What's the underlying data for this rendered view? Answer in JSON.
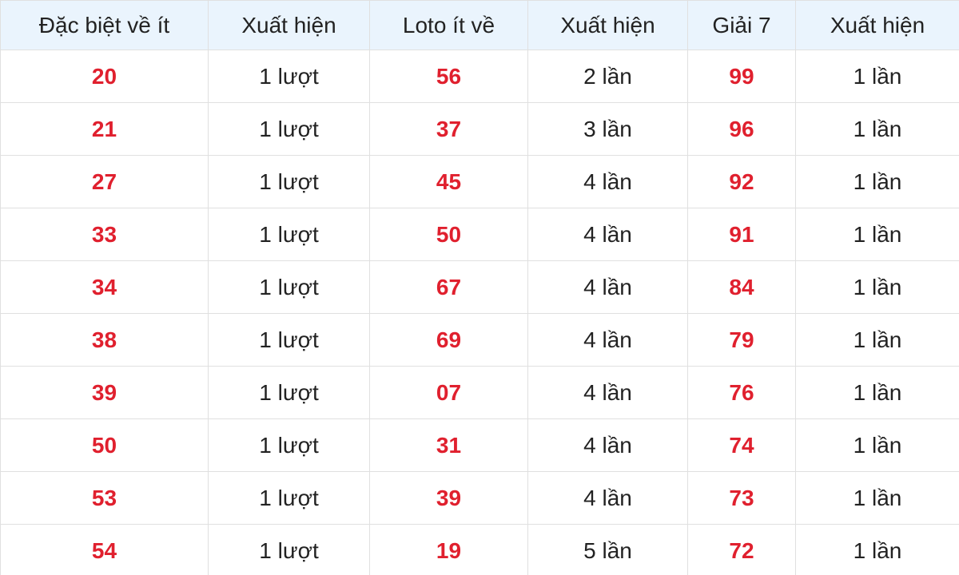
{
  "table": {
    "headers": [
      "Đặc biệt về ít",
      "Xuất hiện",
      "Loto ít về",
      "Xuất hiện",
      "Giải 7",
      "Xuất hiện"
    ],
    "rows": [
      [
        "20",
        "1 lượt",
        "56",
        "2 lần",
        "99",
        "1 lần"
      ],
      [
        "21",
        "1 lượt",
        "37",
        "3 lần",
        "96",
        "1 lần"
      ],
      [
        "27",
        "1 lượt",
        "45",
        "4 lần",
        "92",
        "1 lần"
      ],
      [
        "33",
        "1 lượt",
        "50",
        "4 lần",
        "91",
        "1 lần"
      ],
      [
        "34",
        "1 lượt",
        "67",
        "4 lần",
        "84",
        "1 lần"
      ],
      [
        "38",
        "1 lượt",
        "69",
        "4 lần",
        "79",
        "1 lần"
      ],
      [
        "39",
        "1 lượt",
        "07",
        "4 lần",
        "76",
        "1 lần"
      ],
      [
        "50",
        "1 lượt",
        "31",
        "4 lần",
        "74",
        "1 lần"
      ],
      [
        "53",
        "1 lượt",
        "39",
        "4 lần",
        "73",
        "1 lần"
      ],
      [
        "54",
        "1 lượt",
        "19",
        "5 lần",
        "72",
        "1 lần"
      ]
    ]
  },
  "colors": {
    "number": "#e0202e",
    "header_bg": "#eaf4fd"
  }
}
